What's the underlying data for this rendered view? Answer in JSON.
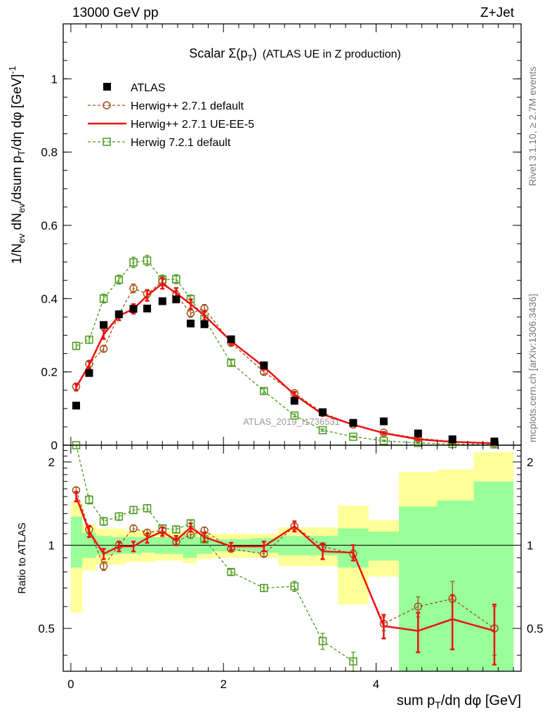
{
  "header": {
    "left": "13000 GeV pp",
    "right": "Z+Jet"
  },
  "side_text": {
    "rivet": "Rivet 3.1.10, ≥ 2.7M events",
    "mcplots": "mcplots.cern.ch [arXiv:1306.3436]"
  },
  "watermark": "ATLAS_2019_I1736531",
  "chart_data": [
    {
      "type": "line",
      "panel": "main",
      "title_parts": {
        "prefix": "Scalar ",
        "sigma": "Σ(p",
        "sub": "T",
        "close": ")",
        "rest": "(ATLAS UE in Z production)"
      },
      "ylabel": "1/N_ev dN_ev/dsum p_T/dη dφ [GeV]^-1",
      "ylabel_parts": {
        "a": "1/N",
        "a_sub": "ev",
        "b": " dN",
        "b_sub": "ev",
        "c": "/dsum p",
        "c_sub": "T",
        "d": "/dη dφ  [GeV]",
        "d_sup": "-1"
      },
      "xlim": [
        -0.1,
        5.9
      ],
      "ylim": [
        0,
        1.15
      ],
      "y_ticks": [
        0,
        0.2,
        0.4,
        0.6,
        0.8,
        1
      ],
      "y_tick_labels": [
        "0",
        "0.2",
        "0.4",
        "0.6",
        "0.8",
        "1"
      ],
      "legend_position": "top-left",
      "series": [
        {
          "name": "ATLAS",
          "style": "data-marker",
          "color": "#000000",
          "x": [
            0.07,
            0.24,
            0.43,
            0.63,
            0.82,
            1.0,
            1.2,
            1.38,
            1.57,
            1.75,
            2.1,
            2.53,
            2.93,
            3.3,
            3.7,
            4.1,
            4.55,
            5.0,
            5.55
          ],
          "values": [
            0.108,
            0.197,
            0.328,
            0.357,
            0.372,
            0.373,
            0.393,
            0.398,
            0.332,
            0.33,
            0.289,
            0.218,
            0.121,
            0.09,
            0.061,
            0.065,
            0.032,
            0.016,
            0.01
          ]
        },
        {
          "name": "Herwig++ 2.7.1 default",
          "style": "dashed-circle",
          "color": "#a0521e",
          "x": [
            0.07,
            0.24,
            0.43,
            0.63,
            0.82,
            1.0,
            1.2,
            1.38,
            1.57,
            1.75,
            2.1,
            2.53,
            2.93,
            3.3,
            3.7,
            4.1,
            4.55,
            5.0,
            5.55
          ],
          "values": [
            0.16,
            0.222,
            0.263,
            0.357,
            0.428,
            0.413,
            0.447,
            0.41,
            0.36,
            0.373,
            0.279,
            0.2,
            0.142,
            0.088,
            0.056,
            0.034,
            0.019,
            0.01,
            0.005
          ],
          "errors": [
            0.008,
            0.008,
            0.008,
            0.01,
            0.012,
            0.012,
            0.012,
            0.012,
            0.011,
            0.011,
            0.008,
            0.007,
            0.005,
            0.004,
            0.003,
            0.002,
            0.002,
            0.001,
            0.001
          ]
        },
        {
          "name": "Herwig++ 2.7.1 UE-EE-5",
          "style": "solid",
          "color": "#ee1111",
          "x": [
            0.07,
            0.24,
            0.43,
            0.63,
            0.82,
            1.0,
            1.2,
            1.38,
            1.57,
            1.75,
            2.1,
            2.53,
            2.93,
            3.3,
            3.7,
            4.1,
            4.55,
            5.0,
            5.55
          ],
          "values": [
            0.158,
            0.219,
            0.302,
            0.353,
            0.372,
            0.408,
            0.441,
            0.415,
            0.385,
            0.354,
            0.284,
            0.214,
            0.138,
            0.084,
            0.056,
            0.033,
            0.016,
            0.009,
            0.005
          ],
          "errors": [
            0.009,
            0.01,
            0.012,
            0.012,
            0.013,
            0.014,
            0.014,
            0.014,
            0.013,
            0.012,
            0.009,
            0.008,
            0.006,
            0.004,
            0.004,
            0.003,
            0.002,
            0.002,
            0.001
          ]
        },
        {
          "name": "Herwig 7.2.1 default",
          "style": "dashed-square",
          "color": "#4a9a1a",
          "x": [
            0.07,
            0.24,
            0.43,
            0.63,
            0.82,
            1.0,
            1.2,
            1.38,
            1.57,
            1.75,
            2.1,
            2.53,
            2.93,
            3.3,
            3.7,
            4.1,
            4.55,
            5.0,
            5.55
          ],
          "values": [
            0.271,
            0.288,
            0.4,
            0.452,
            0.499,
            0.504,
            0.452,
            0.453,
            0.399,
            0.345,
            0.225,
            0.148,
            0.081,
            0.041,
            0.023,
            0.012,
            0.006,
            0.003,
            0.002
          ],
          "errors": [
            0.01,
            0.01,
            0.012,
            0.012,
            0.014,
            0.014,
            0.012,
            0.012,
            0.011,
            0.01,
            0.007,
            0.006,
            0.004,
            0.003,
            0.002,
            0.002,
            0.001,
            0.001,
            0.001
          ]
        }
      ]
    },
    {
      "type": "line",
      "panel": "ratio",
      "ylabel": "Ratio to ATLAS",
      "xlabel": "sum p_T/dη dφ [GeV]",
      "xlabel_parts": {
        "a": "sum p",
        "a_sub": "T",
        "b": "/dη dφ [GeV]"
      },
      "xlim": [
        -0.1,
        5.9
      ],
      "ylim": [
        0.35,
        2.3
      ],
      "x_ticks": [
        0,
        2,
        4
      ],
      "x_tick_labels": [
        "0",
        "2",
        "4"
      ],
      "y_ticks": [
        0.5,
        1,
        2
      ],
      "y_tick_labels": [
        "0.5",
        "1",
        "2"
      ],
      "reference_line": 1,
      "bins": {
        "edges": [
          0.0,
          0.15,
          0.33,
          0.53,
          0.72,
          0.92,
          1.1,
          1.3,
          1.47,
          1.65,
          1.85,
          2.35,
          2.72,
          3.1,
          3.5,
          3.9,
          4.3,
          4.8,
          5.28,
          5.8
        ],
        "stat_band": {
          "color": "#99ff99",
          "lo": [
            0.83,
            0.9,
            0.92,
            0.93,
            0.93,
            0.94,
            0.93,
            0.93,
            0.9,
            0.93,
            0.95,
            0.94,
            0.92,
            0.92,
            0.83,
            0.88,
            0.35,
            0.35,
            0.35
          ],
          "hi": [
            1.27,
            1.11,
            1.08,
            1.07,
            1.07,
            1.07,
            1.07,
            1.07,
            1.1,
            1.07,
            1.05,
            1.06,
            1.08,
            1.08,
            1.15,
            1.12,
            1.38,
            1.45,
            1.7
          ]
        },
        "total_band": {
          "color": "#ffff99",
          "lo": [
            0.57,
            0.81,
            0.85,
            0.85,
            0.87,
            0.87,
            0.88,
            0.88,
            0.86,
            0.89,
            0.9,
            0.9,
            0.84,
            0.84,
            0.61,
            0.77,
            0.35,
            0.35,
            0.35
          ],
          "hi": [
            1.43,
            1.19,
            1.15,
            1.15,
            1.13,
            1.13,
            1.12,
            1.12,
            1.14,
            1.11,
            1.1,
            1.1,
            1.16,
            1.16,
            1.39,
            1.23,
            1.84,
            1.88,
            2.17
          ]
        }
      },
      "series": [
        {
          "name": "Herwig++ 2.7.1 default",
          "style": "dashed-circle",
          "color": "#a0521e",
          "x": [
            0.07,
            0.24,
            0.43,
            0.63,
            0.82,
            1.0,
            1.2,
            1.38,
            1.57,
            1.75,
            2.1,
            2.53,
            2.93,
            3.3,
            3.7,
            4.1,
            4.55,
            5.0,
            5.55
          ],
          "values": [
            1.58,
            1.14,
            0.84,
            1.0,
            1.15,
            1.11,
            1.13,
            1.03,
            1.09,
            1.13,
            0.97,
            0.93,
            1.17,
            0.99,
            0.93,
            0.52,
            0.6,
            0.64,
            0.5
          ],
          "errors": [
            0.04,
            0.04,
            0.03,
            0.03,
            0.03,
            0.03,
            0.03,
            0.03,
            0.03,
            0.03,
            0.02,
            0.02,
            0.03,
            0.03,
            0.03,
            0.03,
            0.05,
            0.1,
            0.1
          ]
        },
        {
          "name": "Herwig++ 2.7.1 UE-EE-5",
          "style": "solid",
          "color": "#ee1111",
          "x": [
            0.07,
            0.24,
            0.43,
            0.63,
            0.82,
            1.0,
            1.2,
            1.38,
            1.57,
            1.75,
            2.1,
            2.53,
            2.93,
            3.3,
            3.7,
            4.1,
            4.55,
            5.0,
            5.55
          ],
          "values": [
            1.5,
            1.12,
            0.93,
            0.99,
            0.99,
            1.06,
            1.12,
            1.04,
            1.16,
            1.07,
            0.99,
            0.99,
            1.17,
            0.95,
            0.94,
            0.51,
            0.49,
            0.54,
            0.49
          ],
          "errors": [
            0.06,
            0.05,
            0.04,
            0.04,
            0.04,
            0.04,
            0.04,
            0.04,
            0.04,
            0.04,
            0.03,
            0.04,
            0.05,
            0.06,
            0.06,
            0.05,
            0.08,
            0.12,
            0.12
          ]
        },
        {
          "name": "Herwig 7.2.1 default",
          "style": "dashed-square",
          "color": "#4a9a1a",
          "x": [
            0.07,
            0.24,
            0.43,
            0.63,
            0.82,
            1.0,
            1.2,
            1.38,
            1.57,
            1.75,
            2.1,
            2.53,
            2.93,
            3.3,
            3.7
          ],
          "values": [
            2.6,
            1.46,
            1.22,
            1.27,
            1.34,
            1.36,
            1.15,
            1.14,
            1.2,
            1.05,
            0.8,
            0.7,
            0.71,
            0.45,
            0.38
          ],
          "errors": [
            0.05,
            0.05,
            0.04,
            0.04,
            0.04,
            0.04,
            0.03,
            0.03,
            0.03,
            0.03,
            0.02,
            0.02,
            0.03,
            0.03,
            0.03
          ]
        }
      ]
    }
  ]
}
